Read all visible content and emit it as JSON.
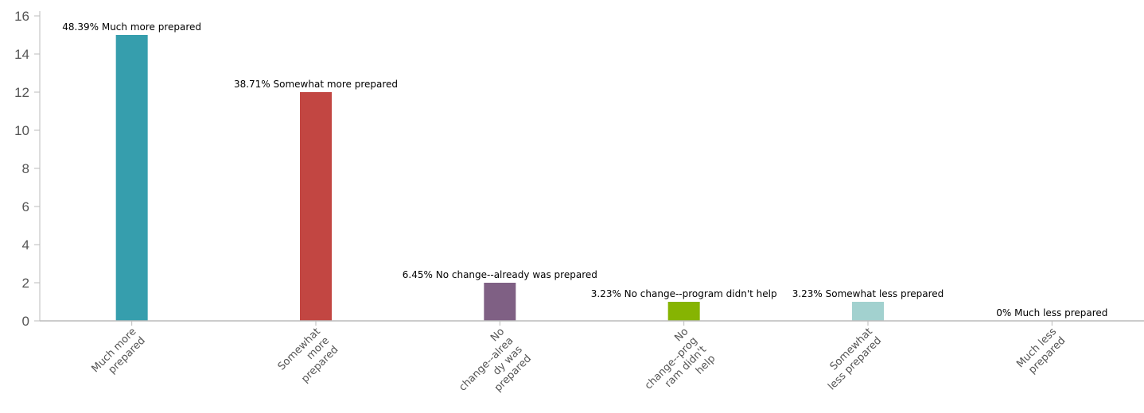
{
  "chart_data": {
    "type": "bar",
    "categories": [
      [
        "Much more",
        "prepared"
      ],
      [
        "Somewhat",
        "more",
        "prepared"
      ],
      [
        "No",
        "change--alrea",
        "dy was",
        "prepared"
      ],
      [
        "No",
        "change--prog",
        "ram didn't",
        "help"
      ],
      [
        "Somewhat",
        "less prepared"
      ],
      [
        "Much less",
        "prepared"
      ]
    ],
    "values": [
      15,
      12,
      2,
      1,
      1,
      0
    ],
    "data_labels": [
      "48.39% Much more prepared",
      "38.71% Somewhat more prepared",
      "6.45% No change--already was prepared",
      "3.23% No change--program didn't help",
      "3.23% Somewhat less prepared",
      "0% Much less prepared"
    ],
    "colors": [
      "#369ead",
      "#c24642",
      "#7f6084",
      "#86b402",
      "#a2d1cf",
      "#c8b631"
    ],
    "y_ticks": [
      0,
      2,
      4,
      6,
      8,
      10,
      12,
      14,
      16
    ],
    "ylim": [
      0,
      16
    ],
    "title": "",
    "xlabel": "",
    "ylabel": "",
    "grid": false,
    "legend": "none"
  }
}
